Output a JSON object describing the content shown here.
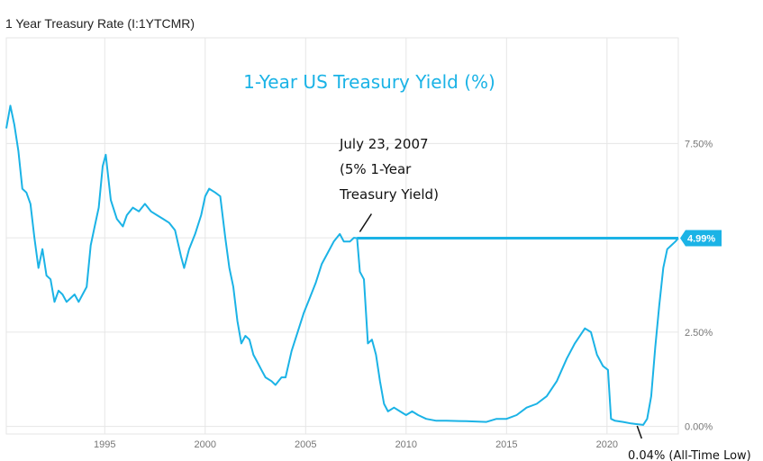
{
  "window": {
    "title": "1 Year Treasury Rate (I:1YTCMR)"
  },
  "colors": {
    "series": "#1bb3e6",
    "grid": "#e6e6e6",
    "badge": "#1bb3e6",
    "text": "#777777"
  },
  "chart_data": {
    "type": "line",
    "title": "1-Year US Treasury Yield (%)",
    "xlabel": "",
    "ylabel": "",
    "xlim": [
      1990.1,
      2023.55
    ],
    "ylim": [
      -0.2,
      10.3
    ],
    "x_ticks": [
      1995,
      2000,
      2005,
      2010,
      2015,
      2020
    ],
    "x_tick_labels": [
      "1995",
      "2000",
      "2005",
      "2010",
      "2015",
      "2020"
    ],
    "y_ticks": [
      0,
      2.5,
      5,
      7.5
    ],
    "y_tick_labels": [
      "0.00%",
      "2.50%",
      "5.00%",
      "7.50%"
    ],
    "grid": true,
    "series": [
      {
        "name": "",
        "x": [
          1990.1,
          1990.3,
          1990.5,
          1990.7,
          1990.9,
          1991.1,
          1991.3,
          1991.5,
          1991.7,
          1991.9,
          1992.1,
          1992.3,
          1992.5,
          1992.7,
          1992.9,
          1993.1,
          1993.3,
          1993.5,
          1993.7,
          1993.9,
          1994.1,
          1994.3,
          1994.5,
          1994.7,
          1994.9,
          1995.05,
          1995.3,
          1995.6,
          1995.9,
          1996.1,
          1996.4,
          1996.7,
          1997.0,
          1997.3,
          1997.6,
          1997.9,
          1998.2,
          1998.5,
          1998.8,
          1998.95,
          1999.2,
          1999.5,
          1999.8,
          2000.0,
          2000.2,
          2000.5,
          2000.75,
          2001.0,
          2001.2,
          2001.4,
          2001.6,
          2001.8,
          2002.0,
          2002.2,
          2002.4,
          2002.6,
          2002.8,
          2003.0,
          2003.3,
          2003.5,
          2003.8,
          2004.0,
          2004.3,
          2004.6,
          2004.9,
          2005.2,
          2005.5,
          2005.8,
          2006.1,
          2006.4,
          2006.7,
          2006.9,
          2007.2,
          2007.4,
          2007.56,
          2007.7,
          2007.9,
          2008.1,
          2008.3,
          2008.5,
          2008.7,
          2008.9,
          2009.1,
          2009.4,
          2009.7,
          2010.0,
          2010.3,
          2010.6,
          2011.0,
          2011.5,
          2012.0,
          2013.0,
          2014.0,
          2014.5,
          2015.0,
          2015.5,
          2016.0,
          2016.5,
          2017.0,
          2017.5,
          2018.0,
          2018.4,
          2018.9,
          2019.2,
          2019.5,
          2019.8,
          2020.05,
          2020.2,
          2020.4,
          2020.8,
          2021.2,
          2021.5,
          2021.8,
          2022.0,
          2022.2,
          2022.4,
          2022.6,
          2022.8,
          2023.0,
          2023.2,
          2023.4,
          2023.55
        ],
        "values": [
          7.9,
          8.5,
          8.0,
          7.3,
          6.3,
          6.2,
          5.9,
          5.0,
          4.2,
          4.7,
          4.0,
          3.9,
          3.3,
          3.6,
          3.5,
          3.3,
          3.4,
          3.5,
          3.3,
          3.5,
          3.7,
          4.8,
          5.3,
          5.8,
          6.9,
          7.2,
          6.0,
          5.5,
          5.3,
          5.6,
          5.8,
          5.7,
          5.9,
          5.7,
          5.6,
          5.5,
          5.4,
          5.2,
          4.5,
          4.2,
          4.7,
          5.1,
          5.6,
          6.1,
          6.3,
          6.2,
          6.1,
          5.0,
          4.2,
          3.7,
          2.8,
          2.2,
          2.4,
          2.3,
          1.9,
          1.7,
          1.5,
          1.3,
          1.2,
          1.1,
          1.3,
          1.3,
          2.0,
          2.5,
          3.0,
          3.4,
          3.8,
          4.3,
          4.6,
          4.9,
          5.1,
          4.9,
          4.9,
          5.0,
          4.99,
          4.1,
          3.9,
          2.2,
          2.3,
          1.9,
          1.2,
          0.6,
          0.4,
          0.5,
          0.4,
          0.3,
          0.4,
          0.3,
          0.2,
          0.15,
          0.15,
          0.14,
          0.12,
          0.2,
          0.2,
          0.3,
          0.5,
          0.6,
          0.8,
          1.2,
          1.8,
          2.2,
          2.6,
          2.5,
          1.9,
          1.6,
          1.5,
          0.2,
          0.15,
          0.12,
          0.08,
          0.06,
          0.04,
          0.2,
          0.8,
          2.1,
          3.2,
          4.2,
          4.7,
          4.8,
          4.9,
          4.99
        ]
      }
    ],
    "reference_line": {
      "value": 4.99,
      "from_x": 2007.56,
      "label": "4.99%"
    },
    "annotations": [
      {
        "lines": [
          "July 23, 2007",
          "(5% 1-Year",
          "Treasury Yield)"
        ],
        "x": 2007.56,
        "y": 4.99
      },
      {
        "text": "0.04% (All-Time Low)",
        "x": 2021.5,
        "y": 0.04
      }
    ]
  }
}
